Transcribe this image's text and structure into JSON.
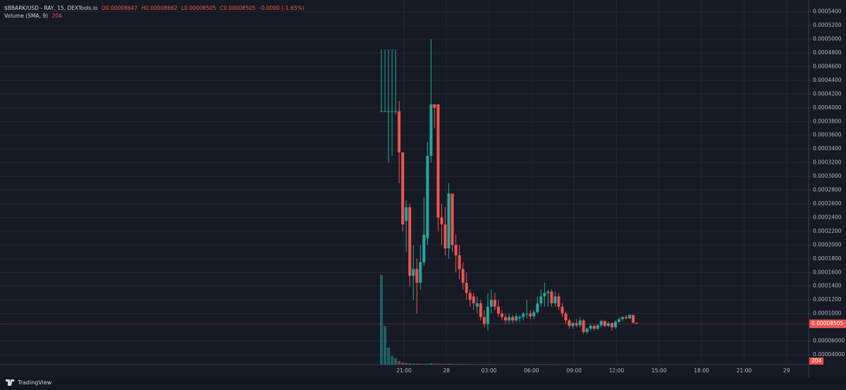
{
  "chart_data": {
    "type": "candlestick",
    "title": "$BBARK/USD - RAY, 15, DEXTools.io",
    "ohlc_labels": [
      "O0.00008647",
      "H0.00008662",
      "L0.00008505",
      "C0.00008505"
    ],
    "change_label": "-0.0000 (-1.65%)",
    "volume_title": "Volume (SMA, 9)",
    "volume_label": "204",
    "last_price_label": "0.00008505",
    "brand": "TradingView",
    "up_color": "#26a69a",
    "down_color": "#ef5350",
    "grid": true,
    "ylim": [
      2.56e-05,
      0.000552
    ],
    "yticks": [
      {
        "value": 4e-05,
        "label": "0.00004000"
      },
      {
        "value": 6e-05,
        "label": "0.00006000"
      },
      {
        "value": 0.0001,
        "label": "0.0001000"
      },
      {
        "value": 0.00012,
        "label": "0.0001200"
      },
      {
        "value": 0.00014,
        "label": "0.0001400"
      },
      {
        "value": 0.00016,
        "label": "0.0001600"
      },
      {
        "value": 0.00018,
        "label": "0.0001800"
      },
      {
        "value": 0.0002,
        "label": "0.0002000"
      },
      {
        "value": 0.00022,
        "label": "0.0002200"
      },
      {
        "value": 0.00024,
        "label": "0.0002400"
      },
      {
        "value": 0.00026,
        "label": "0.0002600"
      },
      {
        "value": 0.00028,
        "label": "0.0002800"
      },
      {
        "value": 0.0003,
        "label": "0.0003000"
      },
      {
        "value": 0.00032,
        "label": "0.0003200"
      },
      {
        "value": 0.00034,
        "label": "0.0003400"
      },
      {
        "value": 0.00036,
        "label": "0.0003600"
      },
      {
        "value": 0.00038,
        "label": "0.0003800"
      },
      {
        "value": 0.0004,
        "label": "0.0004000"
      },
      {
        "value": 0.00042,
        "label": "0.0004200"
      },
      {
        "value": 0.00044,
        "label": "0.0004400"
      },
      {
        "value": 0.00046,
        "label": "0.0004600"
      },
      {
        "value": 0.00048,
        "label": "0.0004800"
      },
      {
        "value": 0.0005,
        "label": "0.0005000"
      },
      {
        "value": 0.00052,
        "label": "0.0005200"
      },
      {
        "value": 0.00054,
        "label": "0.0005400"
      }
    ],
    "xticks": [
      "21:00",
      "28",
      "03:00",
      "06:00",
      "09:00",
      "12:00",
      "15:00",
      "18:00",
      "21:00",
      "29"
    ],
    "ohlc": [
      [
        0.000395,
        0.000485,
        0.000395,
        0.000395
      ],
      [
        0.000395,
        0.000485,
        0.000395,
        0.000395
      ],
      [
        0.000395,
        0.000485,
        0.00032,
        0.000395
      ],
      [
        0.000395,
        0.000485,
        0.00033,
        0.000395
      ],
      [
        0.000395,
        0.000485,
        0.00039,
        0.000395
      ],
      [
        0.000395,
        0.00041,
        0.00029,
        0.000335
      ],
      [
        0.000335,
        0.000335,
        0.00022,
        0.00023
      ],
      [
        0.000235,
        0.000265,
        0.00019,
        0.000255
      ],
      [
        0.000255,
        0.00026,
        0.00014,
        0.000155
      ],
      [
        0.000155,
        0.0002,
        0.00012,
        0.000165
      ],
      [
        0.000165,
        0.00018,
        0.0001,
        0.000145
      ],
      [
        0.000145,
        0.0002,
        0.000135,
        0.000175
      ],
      [
        0.000175,
        0.00027,
        0.00017,
        0.000215
      ],
      [
        0.00021,
        0.00035,
        0.0002,
        0.00033
      ],
      [
        0.00033,
        0.0005,
        0.00032,
        0.000405
      ],
      [
        0.000405,
        0.000405,
        0.00037,
        0.0004
      ],
      [
        0.000405,
        0.000405,
        0.00022,
        0.00024
      ],
      [
        0.00024,
        0.00026,
        0.0002,
        0.00023
      ],
      [
        0.00023,
        0.000255,
        0.000185,
        0.000195
      ],
      [
        0.000195,
        0.00029,
        0.00018,
        0.000275
      ],
      [
        0.000275,
        0.000275,
        0.00019,
        0.0002
      ],
      [
        0.0002,
        0.000215,
        0.00016,
        0.000185
      ],
      [
        0.000185,
        0.0002,
        0.00015,
        0.000165
      ],
      [
        0.000165,
        0.000175,
        0.000135,
        0.000145
      ],
      [
        0.000145,
        0.00016,
        0.00012,
        0.00013
      ],
      [
        0.00013,
        0.000135,
        0.00011,
        0.00012
      ],
      [
        0.000125,
        0.00013,
        0.000105,
        0.000115
      ],
      [
        0.00011,
        0.000125,
        0.0001,
        0.000115
      ],
      [
        0.000115,
        0.00012,
        9e-05,
        9.5e-05
      ],
      [
        9.5e-05,
        0.000105,
        8e-05,
        8.5e-05
      ],
      [
        8.5e-05,
        0.00013,
        7.5e-05,
        0.00011
      ],
      [
        0.00011,
        0.000135,
        0.0001,
        0.00012
      ],
      [
        0.00012,
        0.00013,
        0.000105,
        0.00011
      ],
      [
        0.00011,
        0.00012,
        9.5e-05,
        0.0001
      ],
      [
        0.0001,
        0.000105,
        9e-05,
        9.5e-05
      ],
      [
        9.5e-05,
        0.0001,
        8.5e-05,
        9e-05
      ],
      [
        9e-05,
        0.0001,
        8.5e-05,
        9.5e-05
      ],
      [
        9.5e-05,
        9.8e-05,
        8.6e-05,
        9e-05
      ],
      [
        9e-05,
        0.0001,
        8.7e-05,
        9.6e-05
      ],
      [
        9.3e-05,
        9.8e-05,
        8.8e-05,
        9.5e-05
      ],
      [
        9.5e-05,
        0.000102,
        9e-05,
        0.0001
      ],
      [
        0.0001,
        0.00012,
        9.3e-05,
        0.0001
      ],
      [
        0.0001,
        0.000105,
        9.2e-05,
        9.6e-05
      ],
      [
        9.6e-05,
        0.000105,
        9.2e-05,
        0.000102
      ],
      [
        0.000102,
        0.000125,
        0.0001,
        0.000115
      ],
      [
        0.000115,
        0.000135,
        0.00011,
        0.000125
      ],
      [
        0.000125,
        0.000145,
        0.00011,
        0.00013
      ],
      [
        0.00013,
        0.000135,
        0.00011,
        0.000132
      ],
      [
        0.000132,
        0.000135,
        0.00011,
        0.000115
      ],
      [
        0.000115,
        0.000132,
        0.00011,
        0.000125
      ],
      [
        0.000125,
        0.00013,
        0.000105,
        0.00011
      ],
      [
        0.00011,
        0.000115,
        9.5e-05,
        0.0001
      ],
      [
        0.0001,
        0.000103,
        8.5e-05,
        9e-05
      ],
      [
        9e-05,
        9.3e-05,
        7.8e-05,
        8.2e-05
      ],
      [
        8.2e-05,
        8.8e-05,
        7.8e-05,
        8.6e-05
      ],
      [
        8.6e-05,
        9.2e-05,
        8e-05,
        8.3e-05
      ],
      [
        8.3e-05,
        9.5e-05,
        8e-05,
        9e-05
      ],
      [
        9e-05,
        9.2e-05,
        7e-05,
        7.3e-05
      ],
      [
        7.3e-05,
        8e-05,
        7e-05,
        7.8e-05
      ],
      [
        7.8e-05,
        8.5e-05,
        7.5e-05,
        8.2e-05
      ],
      [
        8.2e-05,
        8.4e-05,
        7.5e-05,
        7.8e-05
      ],
      [
        7.8e-05,
        8.5e-05,
        7.6e-05,
        8.3e-05
      ],
      [
        8.3e-05,
        9.1e-05,
        8e-05,
        8.9e-05
      ],
      [
        8.9e-05,
        9e-05,
        8e-05,
        8.2e-05
      ],
      [
        8.2e-05,
        8.8e-05,
        8e-05,
        8.6e-05
      ],
      [
        8.6e-05,
        8.7e-05,
        7.5e-05,
        8e-05
      ],
      [
        8e-05,
        9e-05,
        7.8e-05,
        8.8e-05
      ],
      [
        8.8e-05,
        9.5e-05,
        8.7e-05,
        9.2e-05
      ],
      [
        9.2e-05,
        9.6e-05,
        8.9e-05,
        9.5e-05
      ],
      [
        9.5e-05,
        9.8e-05,
        9.2e-05,
        9.3e-05
      ],
      [
        9.3e-05,
        9.9e-05,
        9.2e-05,
        9.8e-05
      ],
      [
        9.8e-05,
        9.8e-05,
        8.6e-05,
        8.65e-05
      ],
      [
        8.647e-05,
        8.662e-05,
        8.505e-05,
        8.505e-05
      ]
    ],
    "volume": [
      127000,
      55000,
      24000,
      12000,
      9000,
      5000,
      3000,
      2500,
      2000,
      1800,
      1500,
      1300,
      1200,
      1500,
      2200,
      1400,
      1600,
      1200,
      1000,
      1500,
      1100,
      900,
      800,
      700,
      650,
      600,
      550,
      500,
      450,
      500,
      700,
      600,
      500,
      450,
      400,
      380,
      360,
      340,
      330,
      320,
      400,
      450,
      350,
      330,
      500,
      550,
      600,
      520,
      480,
      450,
      420,
      400,
      380,
      350,
      300,
      320,
      300,
      350,
      280,
      260,
      270,
      260,
      280,
      250,
      240,
      230,
      250,
      240,
      230,
      220,
      230,
      220,
      204
    ]
  }
}
